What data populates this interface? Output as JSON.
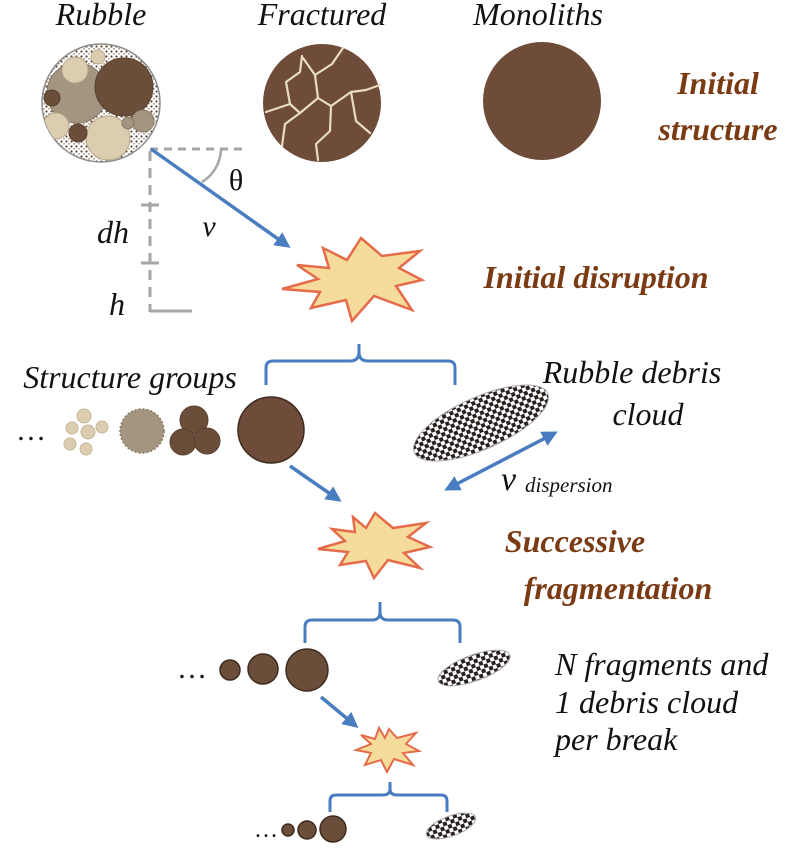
{
  "structure_types": {
    "rubble": "Rubble",
    "fractured": "Fractured",
    "monoliths": "Monoliths"
  },
  "stages": {
    "initial_structure_line1": "Initial",
    "initial_structure_line2": "structure",
    "initial_disruption": "Initial disruption",
    "successive_line1": "Successive",
    "successive_line2": "fragmentation"
  },
  "trajectory": {
    "theta": "θ",
    "velocity": "v",
    "dh": "dh",
    "h": "h"
  },
  "structure_groups": "Structure groups",
  "ellipsis": "…",
  "debris_cloud": {
    "line1": "Rubble debris",
    "line2": "cloud",
    "velocity_symbol": "v",
    "velocity_subscript": "dispersion"
  },
  "fragments_note": {
    "line1": "N fragments and",
    "line2": "1 debris cloud",
    "line3": "per break"
  },
  "colors": {
    "rock_brown": "#6b4e3a",
    "monolith_brown": "#6e4c39",
    "tan": "#a39580",
    "light_tan": "#dcccb0",
    "burst_fill": "#f6dc9a",
    "burst_stroke": "#e46c4b",
    "arrow_blue": "#4a7dc0",
    "guide_gray": "#a6a6a6",
    "stage_text": "#7a3a13"
  }
}
